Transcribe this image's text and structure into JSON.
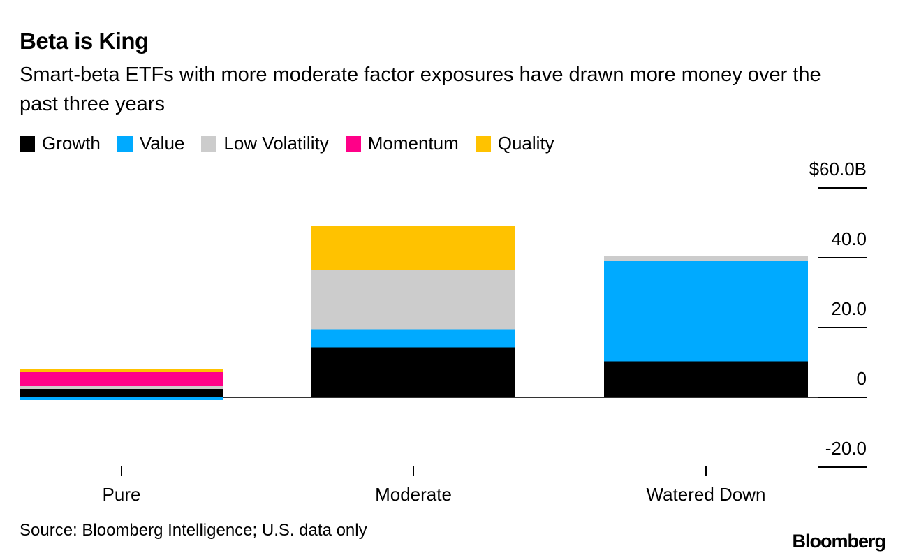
{
  "header": {
    "title": "Beta is King",
    "subtitle": "Smart-beta ETFs with more moderate factor exposures have drawn more money over the past three years"
  },
  "footer": {
    "source": "Source: Bloomberg Intelligence; U.S. data only",
    "logo": "Bloomberg"
  },
  "chart_data": {
    "type": "bar",
    "stacked": true,
    "categories": [
      "Pure",
      "Moderate",
      "Watered Down"
    ],
    "series": [
      {
        "name": "Growth",
        "color": "#000000",
        "values": [
          2.4,
          14.3,
          10.3
        ]
      },
      {
        "name": "Value",
        "color": "#00AAFF",
        "values": [
          -0.8,
          5.2,
          28.7
        ]
      },
      {
        "name": "Low Volatility",
        "color": "#CCCCCC",
        "values": [
          0.8,
          16.9,
          1.4
        ]
      },
      {
        "name": "Momentum",
        "color": "#FF0088",
        "values": [
          4.0,
          0.2,
          0.0
        ]
      },
      {
        "name": "Quality",
        "color": "#FFC200",
        "values": [
          0.8,
          12.5,
          0.2
        ]
      }
    ],
    "ylim": [
      -20,
      60
    ],
    "yticks": [
      -20,
      0,
      20,
      40,
      60
    ],
    "ytick_labels": [
      "-20.0",
      "0",
      "20.0",
      "40.0",
      "$60.0B"
    ],
    "legend": "top-left",
    "grid": false
  }
}
